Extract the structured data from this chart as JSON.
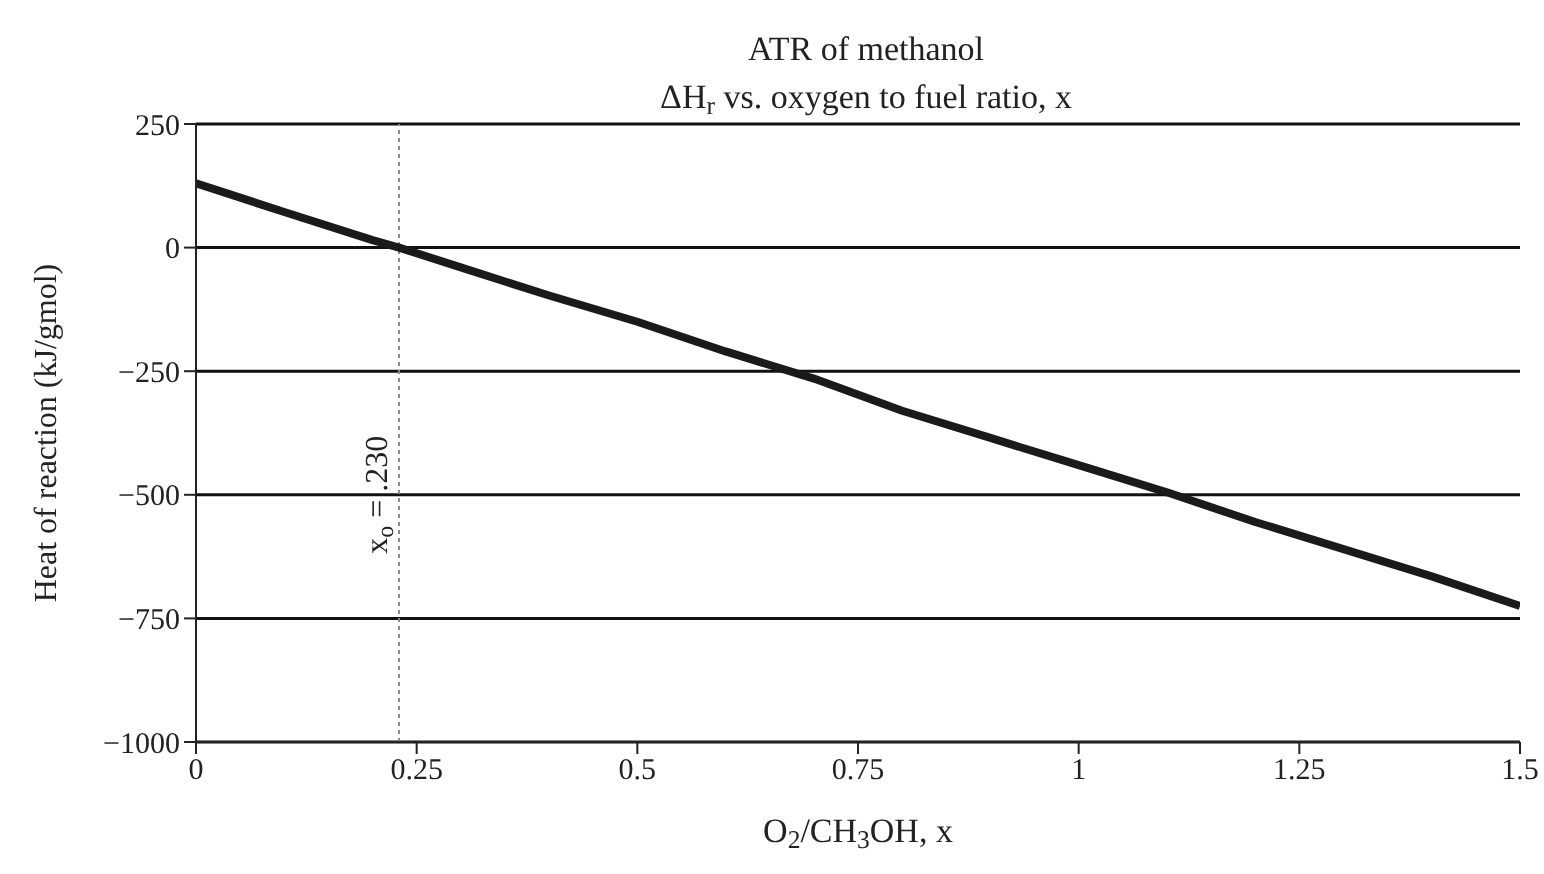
{
  "chart_data": {
    "type": "line",
    "title": "ATR of methanol",
    "subtitle": "ΔH$_{r}$ vs. oxygen to fuel ratio, x",
    "xlabel": "O$_{2}$/CH$_{3}$OH, x",
    "ylabel": "Heat of reaction (kJ/gmol)",
    "x": [
      0,
      0.1,
      0.2,
      0.23,
      0.3,
      0.4,
      0.5,
      0.6,
      0.7,
      0.8,
      0.9,
      1.0,
      1.1,
      1.2,
      1.3,
      1.4,
      1.5
    ],
    "series": [
      {
        "color": "#1a1a1a",
        "values": [
          130,
          72,
          15,
          0,
          -40,
          -97,
          -150,
          -210,
          -265,
          -330,
          -385,
          -440,
          -495,
          -555,
          -610,
          -665,
          -725
        ]
      }
    ],
    "xlim": [
      0,
      1.5
    ],
    "xticks": [
      0,
      0.25,
      0.5,
      0.75,
      1,
      1.25,
      1.5
    ],
    "ylim": [
      -1000,
      250
    ],
    "yticks": [
      {
        "value": -1000,
        "label": "−1000"
      },
      {
        "value": -750,
        "label": "−750"
      },
      {
        "value": -500,
        "label": "−500"
      },
      {
        "value": -250,
        "label": "−250"
      },
      0,
      250
    ],
    "grid": "y",
    "ref_lines": [
      {
        "axis": "x",
        "value": 0.23,
        "label": "x$_{o}$ = .230",
        "line_style": "dotted",
        "color": "#888888"
      }
    ]
  }
}
